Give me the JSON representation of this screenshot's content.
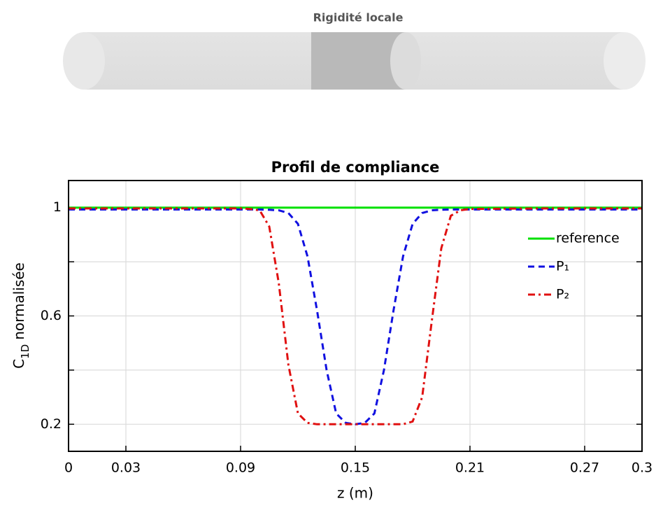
{
  "header": {
    "title": "Rigidité locale"
  },
  "chart_data": {
    "type": "line",
    "title": "Profil de compliance",
    "xlabel": "z (m)",
    "ylabel": {
      "main": "C",
      "sub": "1D",
      "rest": "normalisée"
    },
    "x": [
      0,
      0.05,
      0.09,
      0.095,
      0.1,
      0.105,
      0.11,
      0.115,
      0.12,
      0.125,
      0.13,
      0.135,
      0.14,
      0.145,
      0.15,
      0.155,
      0.16,
      0.165,
      0.17,
      0.175,
      0.18,
      0.185,
      0.19,
      0.195,
      0.2,
      0.205,
      0.21,
      0.25,
      0.3
    ],
    "series": [
      {
        "name": "reference",
        "color": "#00e000",
        "dash": "solid",
        "values": [
          1,
          1,
          1,
          1,
          1,
          1,
          1,
          1,
          1,
          1,
          1,
          1,
          1,
          1,
          1,
          1,
          1,
          1,
          1,
          1,
          1,
          1,
          1,
          1,
          1,
          1,
          1,
          1,
          1
        ]
      },
      {
        "name": "P₁",
        "color": "#1010e0",
        "dash": "dashed",
        "values": [
          0.993,
          0.993,
          0.993,
          0.993,
          0.993,
          0.992,
          0.99,
          0.98,
          0.94,
          0.82,
          0.62,
          0.4,
          0.24,
          0.205,
          0.2,
          0.205,
          0.24,
          0.4,
          0.62,
          0.82,
          0.94,
          0.98,
          0.99,
          0.992,
          0.993,
          0.993,
          0.993,
          0.993,
          0.993
        ]
      },
      {
        "name": "P₂",
        "color": "#e01010",
        "dash": "dashdot",
        "values": [
          0.997,
          0.997,
          0.997,
          0.995,
          0.99,
          0.93,
          0.72,
          0.42,
          0.24,
          0.205,
          0.2,
          0.2,
          0.2,
          0.2,
          0.2,
          0.2,
          0.2,
          0.2,
          0.2,
          0.2,
          0.21,
          0.3,
          0.58,
          0.85,
          0.97,
          0.99,
          0.995,
          0.997,
          0.997
        ]
      }
    ],
    "xlim": [
      0,
      0.3
    ],
    "ylim": [
      0.1,
      1.1
    ],
    "xticks": [
      0,
      0.03,
      0.09,
      0.15,
      0.21,
      0.27,
      0.3
    ],
    "yticks": [
      0.2,
      0.6,
      1
    ],
    "yminor_ticks": [
      0.4,
      0.8
    ],
    "grid": true,
    "legend": "right"
  }
}
